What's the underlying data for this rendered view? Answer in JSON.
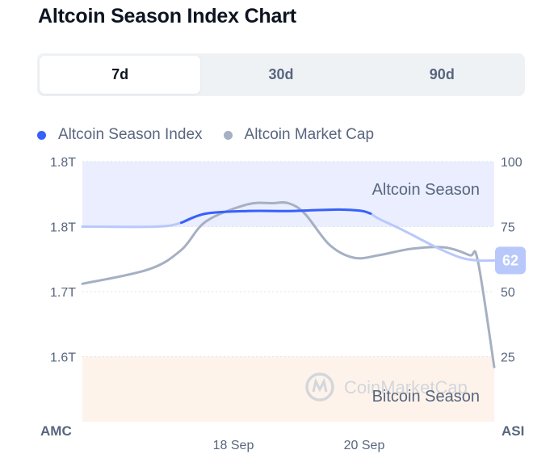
{
  "title": "Altcoin Season Index Chart",
  "tabs": [
    {
      "label": "7d",
      "active": true
    },
    {
      "label": "30d",
      "active": false
    },
    {
      "label": "90d",
      "active": false
    }
  ],
  "legend": [
    {
      "label": "Altcoin Season Index",
      "color": "#3861fb"
    },
    {
      "label": "Altcoin Market Cap",
      "color": "#a6b0c3"
    }
  ],
  "watermark": "CoinMarketCap",
  "chart_data": {
    "type": "line",
    "left_axis": {
      "name": "AMC",
      "ticks": [
        "1.8T",
        "1.8T",
        "1.7T",
        "1.6T"
      ]
    },
    "right_axis": {
      "name": "ASI",
      "ticks": [
        100,
        75,
        50,
        25
      ],
      "ylim": [
        0,
        100
      ]
    },
    "x_ticks": [
      "18 Sep",
      "20 Sep"
    ],
    "bands": [
      {
        "label": "Altcoin Season",
        "from": 75,
        "to": 100,
        "color": "#eaeeff"
      },
      {
        "label": "Bitcoin Season",
        "from": 0,
        "to": 25,
        "color": "#fdf3ea"
      }
    ],
    "series": [
      {
        "name": "Altcoin Season Index",
        "axis": "right",
        "color": "#3861fb",
        "faded_color": "#b9c8fb",
        "x": [
          0,
          0.18,
          0.24,
          0.3,
          0.4,
          0.5,
          0.6,
          0.64,
          0.68,
          0.7,
          0.72,
          0.78,
          0.86,
          0.92,
          0.96,
          1.0
        ],
        "values": [
          75,
          75,
          76.5,
          80,
          81,
          81,
          81.5,
          81.5,
          81,
          80,
          78,
          73.5,
          67,
          63,
          62,
          62
        ],
        "highlight_x_range": [
          0.24,
          0.7
        ],
        "last_value_label": "62"
      },
      {
        "name": "Altcoin Market Cap",
        "axis": "left",
        "color": "#a6b0c3",
        "x": [
          0,
          0.16,
          0.24,
          0.3,
          0.4,
          0.46,
          0.5,
          0.54,
          0.6,
          0.66,
          0.72,
          0.8,
          0.88,
          0.94,
          0.96,
          1.0
        ],
        "values": [
          53,
          58.5,
          66,
          77,
          83.5,
          84,
          84,
          80,
          68,
          63,
          64,
          66.5,
          67,
          64,
          62,
          21
        ]
      }
    ]
  }
}
